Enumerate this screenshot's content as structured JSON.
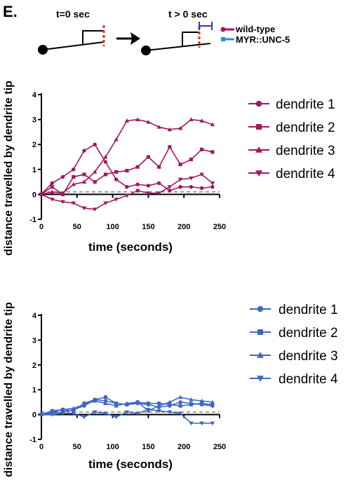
{
  "panel_label": "E.",
  "schematic": {
    "left_time": "t=0 sec",
    "right_time": "t > 0 sec",
    "legend": [
      {
        "label": "wild-type",
        "color": "#a1185e"
      },
      {
        "label": "MYR::UNC-5",
        "color": "#2b8fcf"
      }
    ]
  },
  "colors": {
    "wild_type": "#a1185e",
    "myr_unc5": "#3f67c2",
    "dendrite_tip_marker": "#e03030",
    "displacement_bar": "#3a3aa8"
  },
  "chart_data": [
    {
      "type": "line",
      "title": "",
      "xlabel": "time (seconds)",
      "ylabel": "distance travelled by dendrite tip",
      "xlim": [
        0,
        250
      ],
      "ylim": [
        -1,
        4
      ],
      "xticks": [
        0,
        50,
        100,
        150,
        200,
        250
      ],
      "yticks": [
        -1,
        0,
        1,
        2,
        3,
        4
      ],
      "reference_line": {
        "y": 0.1,
        "style": "dashed"
      },
      "legend_position": "right",
      "x": [
        0,
        15,
        30,
        45,
        60,
        75,
        90,
        105,
        120,
        135,
        150,
        165,
        180,
        195,
        210,
        225,
        240
      ],
      "series": [
        {
          "name": "dendrite 1",
          "marker": "circle",
          "values": [
            0,
            0.45,
            0.7,
            1.0,
            1.75,
            2.0,
            1.3,
            0.6,
            0.3,
            0.4,
            0.35,
            0.45,
            0.15,
            0.3,
            0.3,
            0.25,
            0.3
          ]
        },
        {
          "name": "dendrite 2",
          "marker": "square",
          "values": [
            0,
            0.3,
            0,
            0.7,
            0.8,
            0.5,
            0.8,
            0.9,
            0.95,
            1.1,
            1.5,
            1.1,
            1.9,
            1.2,
            1.4,
            1.8,
            1.7
          ]
        },
        {
          "name": "dendrite 3",
          "marker": "triangle-up",
          "values": [
            0,
            0.1,
            0.05,
            0.4,
            0.5,
            0.9,
            1.5,
            2.2,
            2.95,
            3.0,
            2.9,
            2.7,
            2.6,
            2.65,
            3.0,
            2.95,
            2.8
          ]
        },
        {
          "name": "dendrite 4",
          "marker": "triangle-down",
          "values": [
            0,
            -0.2,
            -0.3,
            -0.35,
            -0.55,
            -0.6,
            -0.35,
            -0.2,
            -0.05,
            0.15,
            0.05,
            0.05,
            0.3,
            0.6,
            0.65,
            0.8,
            0.45
          ]
        }
      ]
    },
    {
      "type": "line",
      "title": "",
      "xlabel": "time (seconds)",
      "ylabel": "distance travelled by dendrite tip",
      "xlim": [
        0,
        250
      ],
      "ylim": [
        -1,
        4
      ],
      "xticks": [
        0,
        50,
        100,
        150,
        200,
        250
      ],
      "yticks": [
        -1,
        0,
        1,
        2,
        3,
        4
      ],
      "reference_line": {
        "y": 0.1,
        "style": "dashed"
      },
      "legend_position": "right",
      "x": [
        0,
        15,
        30,
        45,
        60,
        75,
        90,
        105,
        120,
        135,
        150,
        165,
        180,
        195,
        210,
        225,
        240
      ],
      "series": [
        {
          "name": "dendrite 1",
          "marker": "circle",
          "values": [
            0,
            0.05,
            0.1,
            0.2,
            0.35,
            0.6,
            0.55,
            0.45,
            0.4,
            0.45,
            0.4,
            0.3,
            0.35,
            0.5,
            0.45,
            0.4,
            0.35
          ]
        },
        {
          "name": "dendrite 2",
          "marker": "square",
          "values": [
            0,
            0.15,
            0.2,
            0.15,
            0.45,
            0.6,
            0.7,
            0.45,
            0.4,
            0.5,
            0.45,
            0.45,
            0.4,
            0.35,
            0.4,
            0.45,
            0.4
          ]
        },
        {
          "name": "dendrite 3",
          "marker": "triangle-up",
          "values": [
            0,
            0.1,
            0.2,
            0.25,
            0.4,
            0.55,
            0.45,
            0.35,
            0.45,
            0.5,
            0.15,
            0.35,
            0.5,
            0.7,
            0.6,
            0.55,
            0.5
          ]
        },
        {
          "name": "dendrite 4",
          "marker": "triangle-down",
          "values": [
            0,
            0,
            0.05,
            0.05,
            -0.1,
            0.1,
            0.05,
            -0.1,
            0.1,
            0.05,
            0.2,
            0.15,
            0.1,
            0.05,
            -0.35,
            -0.35,
            -0.35
          ]
        }
      ]
    }
  ]
}
